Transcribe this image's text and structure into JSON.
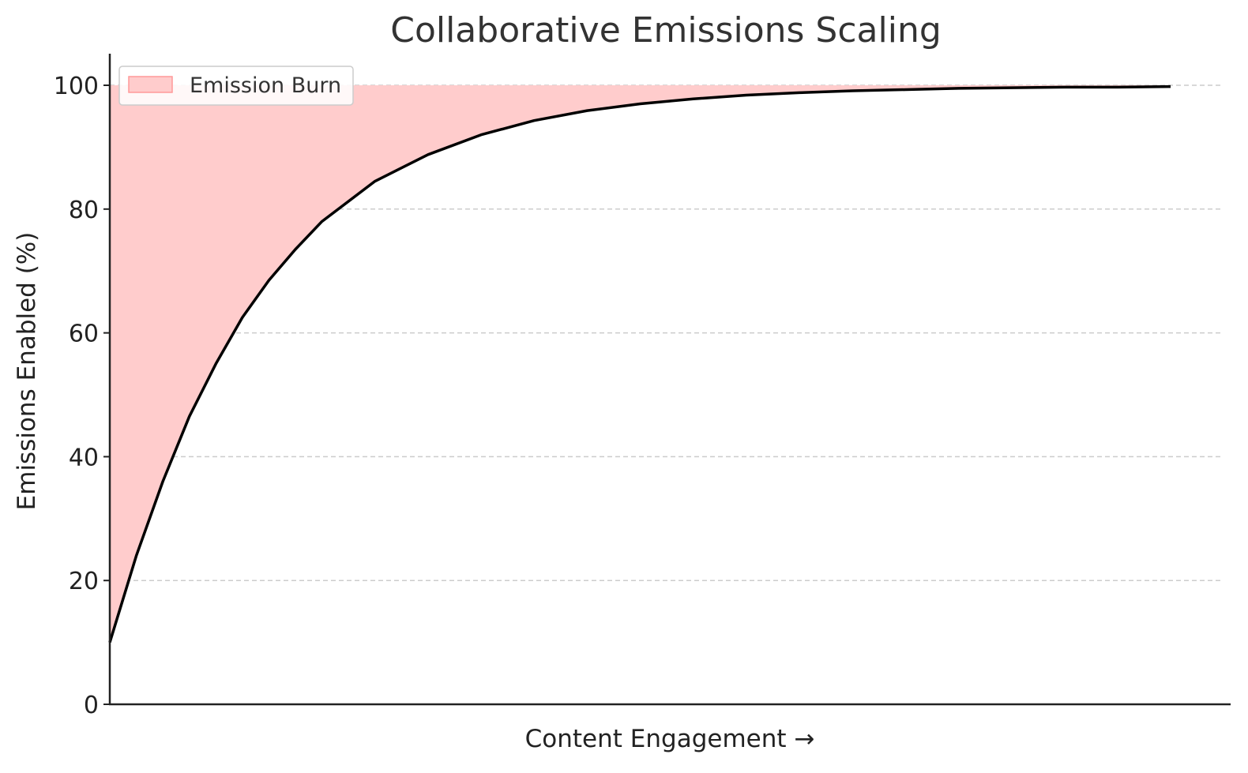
{
  "chart_data": {
    "type": "area",
    "title": "Collaborative Emissions Scaling",
    "xlabel": "Content Engagement →",
    "ylabel": "Emissions Enabled (%)",
    "xlim": [
      0,
      10
    ],
    "ylim": [
      0,
      100
    ],
    "yticks": [
      "0",
      "20",
      "40",
      "60",
      "80",
      "100"
    ],
    "ytick_values": [
      0,
      20,
      40,
      60,
      80,
      100
    ],
    "grid": "horizontal dashed",
    "legend_position": "top-left",
    "series": [
      {
        "name": "Emission Burn",
        "kind": "fill-between",
        "upper": 100,
        "color": "#ffcccc",
        "edge_color": "#ff9999"
      },
      {
        "kind": "line",
        "color": "#000000",
        "x": [
          0,
          0.25,
          0.5,
          0.75,
          1,
          1.25,
          1.5,
          1.75,
          2,
          2.5,
          3,
          3.5,
          4,
          4.5,
          5,
          5.5,
          6,
          6.5,
          7,
          7.5,
          8,
          8.5,
          9,
          9.5,
          10
        ],
        "y": [
          10,
          24,
          36,
          46.5,
          55,
          62.5,
          68.5,
          73.5,
          78,
          84.5,
          88.8,
          92,
          94.3,
          95.9,
          97,
          97.8,
          98.4,
          98.8,
          99.1,
          99.3,
          99.5,
          99.6,
          99.7,
          99.7,
          99.8
        ]
      }
    ]
  }
}
